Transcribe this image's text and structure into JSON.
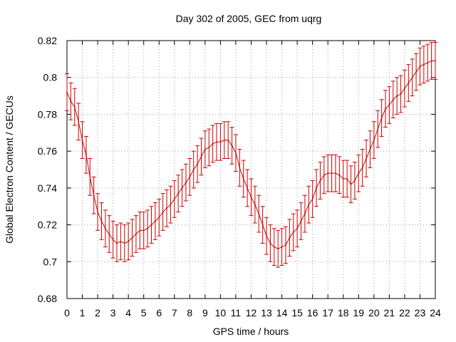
{
  "chart_data": {
    "type": "line",
    "title": "Day 302 of 2005, GEC from uqrg",
    "xlabel": "GPS time / hours",
    "ylabel": "Global Electron Content / GECUs",
    "xlim": [
      0,
      24
    ],
    "ylim": [
      0.68,
      0.82
    ],
    "grid": true,
    "line_color": "#cc0000",
    "x_ticks": [
      "0",
      "1",
      "2",
      "3",
      "4",
      "5",
      "6",
      "7",
      "8",
      "9",
      "10",
      "11",
      "12",
      "13",
      "14",
      "15",
      "16",
      "17",
      "18",
      "19",
      "20",
      "21",
      "22",
      "23",
      "24"
    ],
    "y_ticks": [
      "0.68",
      "0.7",
      "0.72",
      "0.74",
      "0.76",
      "0.78",
      "0.8",
      "0.82"
    ],
    "error": 0.01,
    "series": [
      {
        "x": [
          0.0,
          0.25,
          0.5,
          0.75,
          1.0,
          1.25,
          1.5,
          1.75,
          2.0,
          2.25,
          2.5,
          2.75,
          3.0,
          3.25,
          3.5,
          3.75,
          4.0,
          4.25,
          4.5,
          4.75,
          5.0,
          5.25,
          5.5,
          5.75,
          6.0,
          6.25,
          6.5,
          6.75,
          7.0,
          7.25,
          7.5,
          7.75,
          8.0,
          8.25,
          8.5,
          8.75,
          9.0,
          9.25,
          9.5,
          9.75,
          10.0,
          10.25,
          10.5,
          10.75,
          11.0,
          11.25,
          11.5,
          11.75,
          12.0,
          12.25,
          12.5,
          12.75,
          13.0,
          13.25,
          13.5,
          13.75,
          14.0,
          14.25,
          14.5,
          14.75,
          15.0,
          15.25,
          15.5,
          15.75,
          16.0,
          16.25,
          16.5,
          16.75,
          17.0,
          17.25,
          17.5,
          17.75,
          18.0,
          18.25,
          18.5,
          18.75,
          19.0,
          19.25,
          19.5,
          19.75,
          20.0,
          20.25,
          20.5,
          20.75,
          21.0,
          21.25,
          21.5,
          21.75,
          22.0,
          22.25,
          22.5,
          22.75,
          23.0,
          23.25,
          23.5,
          23.75,
          24.0
        ],
        "y": [
          0.792,
          0.787,
          0.784,
          0.776,
          0.766,
          0.758,
          0.746,
          0.736,
          0.727,
          0.722,
          0.718,
          0.715,
          0.712,
          0.71,
          0.711,
          0.71,
          0.711,
          0.713,
          0.715,
          0.717,
          0.717,
          0.718,
          0.72,
          0.722,
          0.724,
          0.727,
          0.729,
          0.731,
          0.734,
          0.737,
          0.74,
          0.743,
          0.746,
          0.75,
          0.753,
          0.757,
          0.761,
          0.762,
          0.764,
          0.765,
          0.765,
          0.766,
          0.766,
          0.763,
          0.759,
          0.751,
          0.745,
          0.74,
          0.735,
          0.731,
          0.726,
          0.72,
          0.714,
          0.71,
          0.708,
          0.707,
          0.708,
          0.709,
          0.713,
          0.716,
          0.718,
          0.722,
          0.726,
          0.731,
          0.734,
          0.74,
          0.744,
          0.747,
          0.748,
          0.748,
          0.748,
          0.747,
          0.745,
          0.745,
          0.742,
          0.744,
          0.748,
          0.751,
          0.756,
          0.761,
          0.766,
          0.772,
          0.778,
          0.783,
          0.785,
          0.788,
          0.79,
          0.791,
          0.794,
          0.797,
          0.8,
          0.803,
          0.806,
          0.807,
          0.808,
          0.809,
          0.809
        ]
      }
    ]
  }
}
